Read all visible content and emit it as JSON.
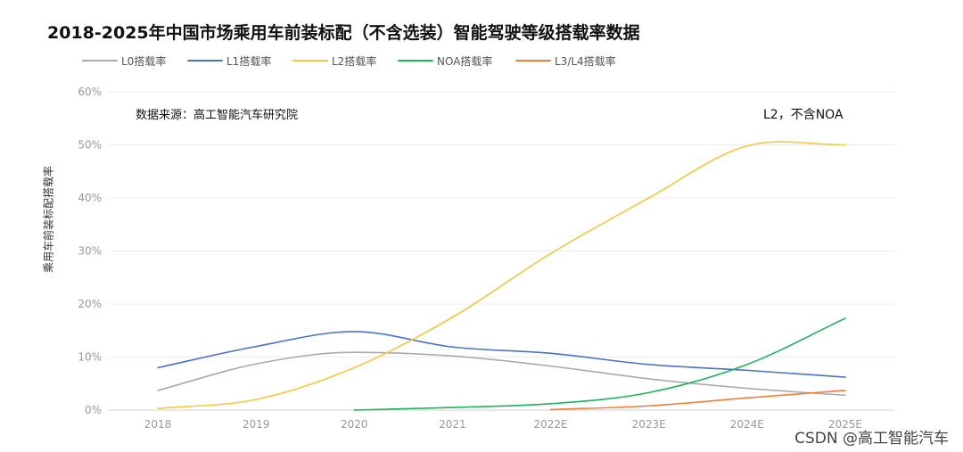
{
  "chart_data": {
    "type": "line",
    "title": "2018-2025年中国市场乘用车前装标配（不含选装）智能驾驶等级搭载率数据",
    "ylabel": "乘用车前装标配搭载率",
    "xlabel": "",
    "categories": [
      "2018",
      "2019",
      "2020",
      "2021",
      "2022E",
      "2023E",
      "2024E",
      "2025E"
    ],
    "y_ticks": [
      "0%",
      "10%",
      "20%",
      "30%",
      "40%",
      "50%",
      "60%"
    ],
    "ylim": [
      0,
      60
    ],
    "grid": true,
    "legend_position": "top",
    "series": [
      {
        "name": "L0搭载率",
        "color": "#aaaaaa",
        "values": [
          3.7,
          8.7,
          10.9,
          10.2,
          8.3,
          5.9,
          4.1,
          2.8
        ]
      },
      {
        "name": "L1搭载率",
        "color": "#4a72c6",
        "values": [
          8.0,
          12.0,
          14.8,
          11.9,
          10.7,
          8.6,
          7.5,
          6.2
        ]
      },
      {
        "name": "L2搭载率",
        "color": "#f5c842",
        "values": [
          0.3,
          2.0,
          8.0,
          17.5,
          29.5,
          40.0,
          49.8,
          50.0
        ]
      },
      {
        "name": "NOA搭载率",
        "color": "#1db35c",
        "values": [
          null,
          null,
          0.0,
          0.5,
          1.2,
          3.3,
          8.6,
          17.3
        ]
      },
      {
        "name": "L3/L4搭载率",
        "color": "#ef7f3a",
        "values": [
          null,
          null,
          null,
          null,
          0.1,
          0.8,
          2.3,
          3.7
        ]
      }
    ],
    "annotations": {
      "source": "数据来源：高工智能汽车研究院",
      "note": "L2，不含NOA"
    }
  },
  "watermark": "CSDN @高工智能汽车"
}
